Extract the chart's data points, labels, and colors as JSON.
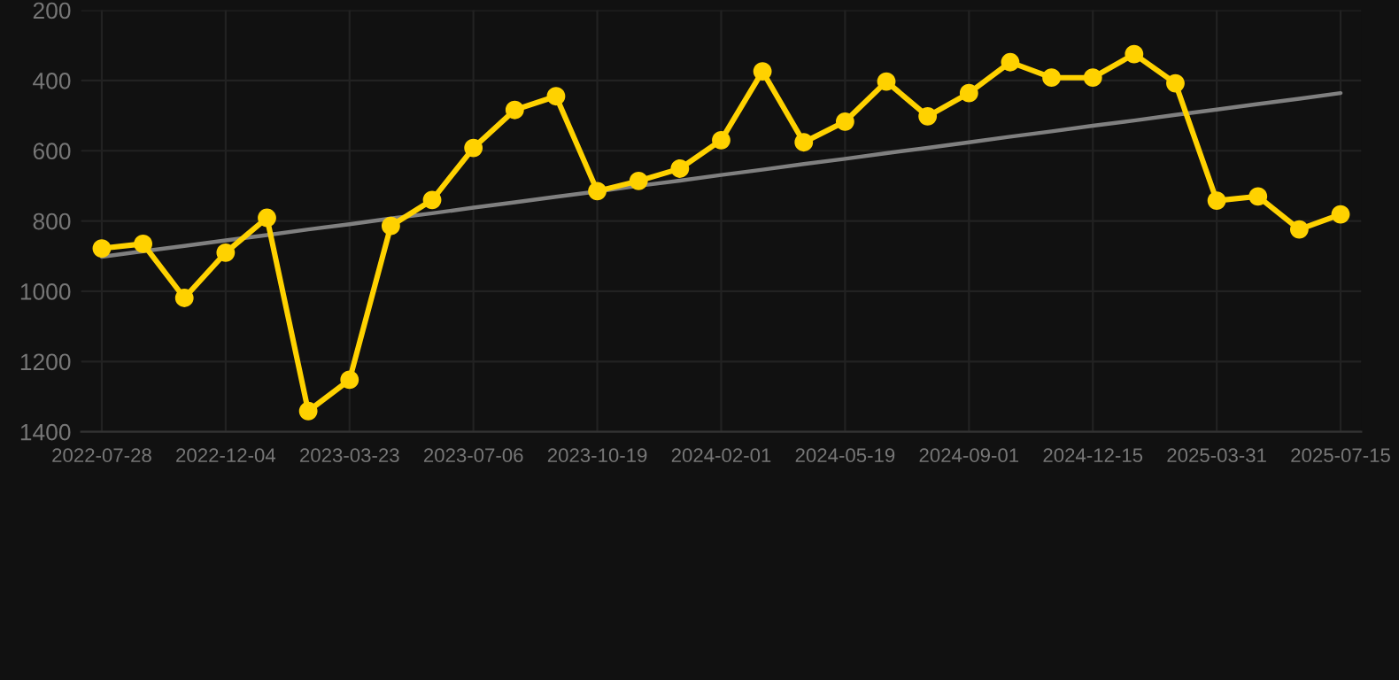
{
  "chart_data": {
    "type": "line",
    "categories": [
      "2022-07-28",
      null,
      null,
      "2022-12-04",
      null,
      null,
      "2023-03-23",
      null,
      null,
      "2023-07-06",
      null,
      null,
      "2023-10-19",
      null,
      null,
      "2024-02-01",
      null,
      null,
      "2024-05-19",
      null,
      null,
      "2024-09-01",
      null,
      null,
      "2024-12-15",
      null,
      null,
      "2025-03-31",
      null,
      null,
      "2025-07-15"
    ],
    "series": [
      {
        "color": "#ffd200",
        "marker": "circle",
        "values": [
          878,
          865,
          1019,
          890,
          791,
          1341,
          1252,
          814,
          740,
          592,
          484,
          445,
          715,
          686,
          651,
          570,
          374,
          576,
          517,
          403,
          502,
          436,
          348,
          392,
          392,
          325,
          408,
          742,
          730,
          824,
          781
        ]
      },
      {
        "color": "#808080",
        "marker": "none",
        "values": [
          902,
          886,
          871,
          855,
          840,
          824,
          809,
          793,
          778,
          762,
          747,
          731,
          716,
          700,
          685,
          669,
          654,
          638,
          623,
          607,
          592,
          576,
          560,
          545,
          529,
          514,
          498,
          483,
          467,
          452,
          436
        ]
      }
    ],
    "ylim": [
      1400,
      200
    ],
    "yticks": [
      200,
      400,
      600,
      800,
      1000,
      1200,
      1400
    ],
    "grid": true
  }
}
